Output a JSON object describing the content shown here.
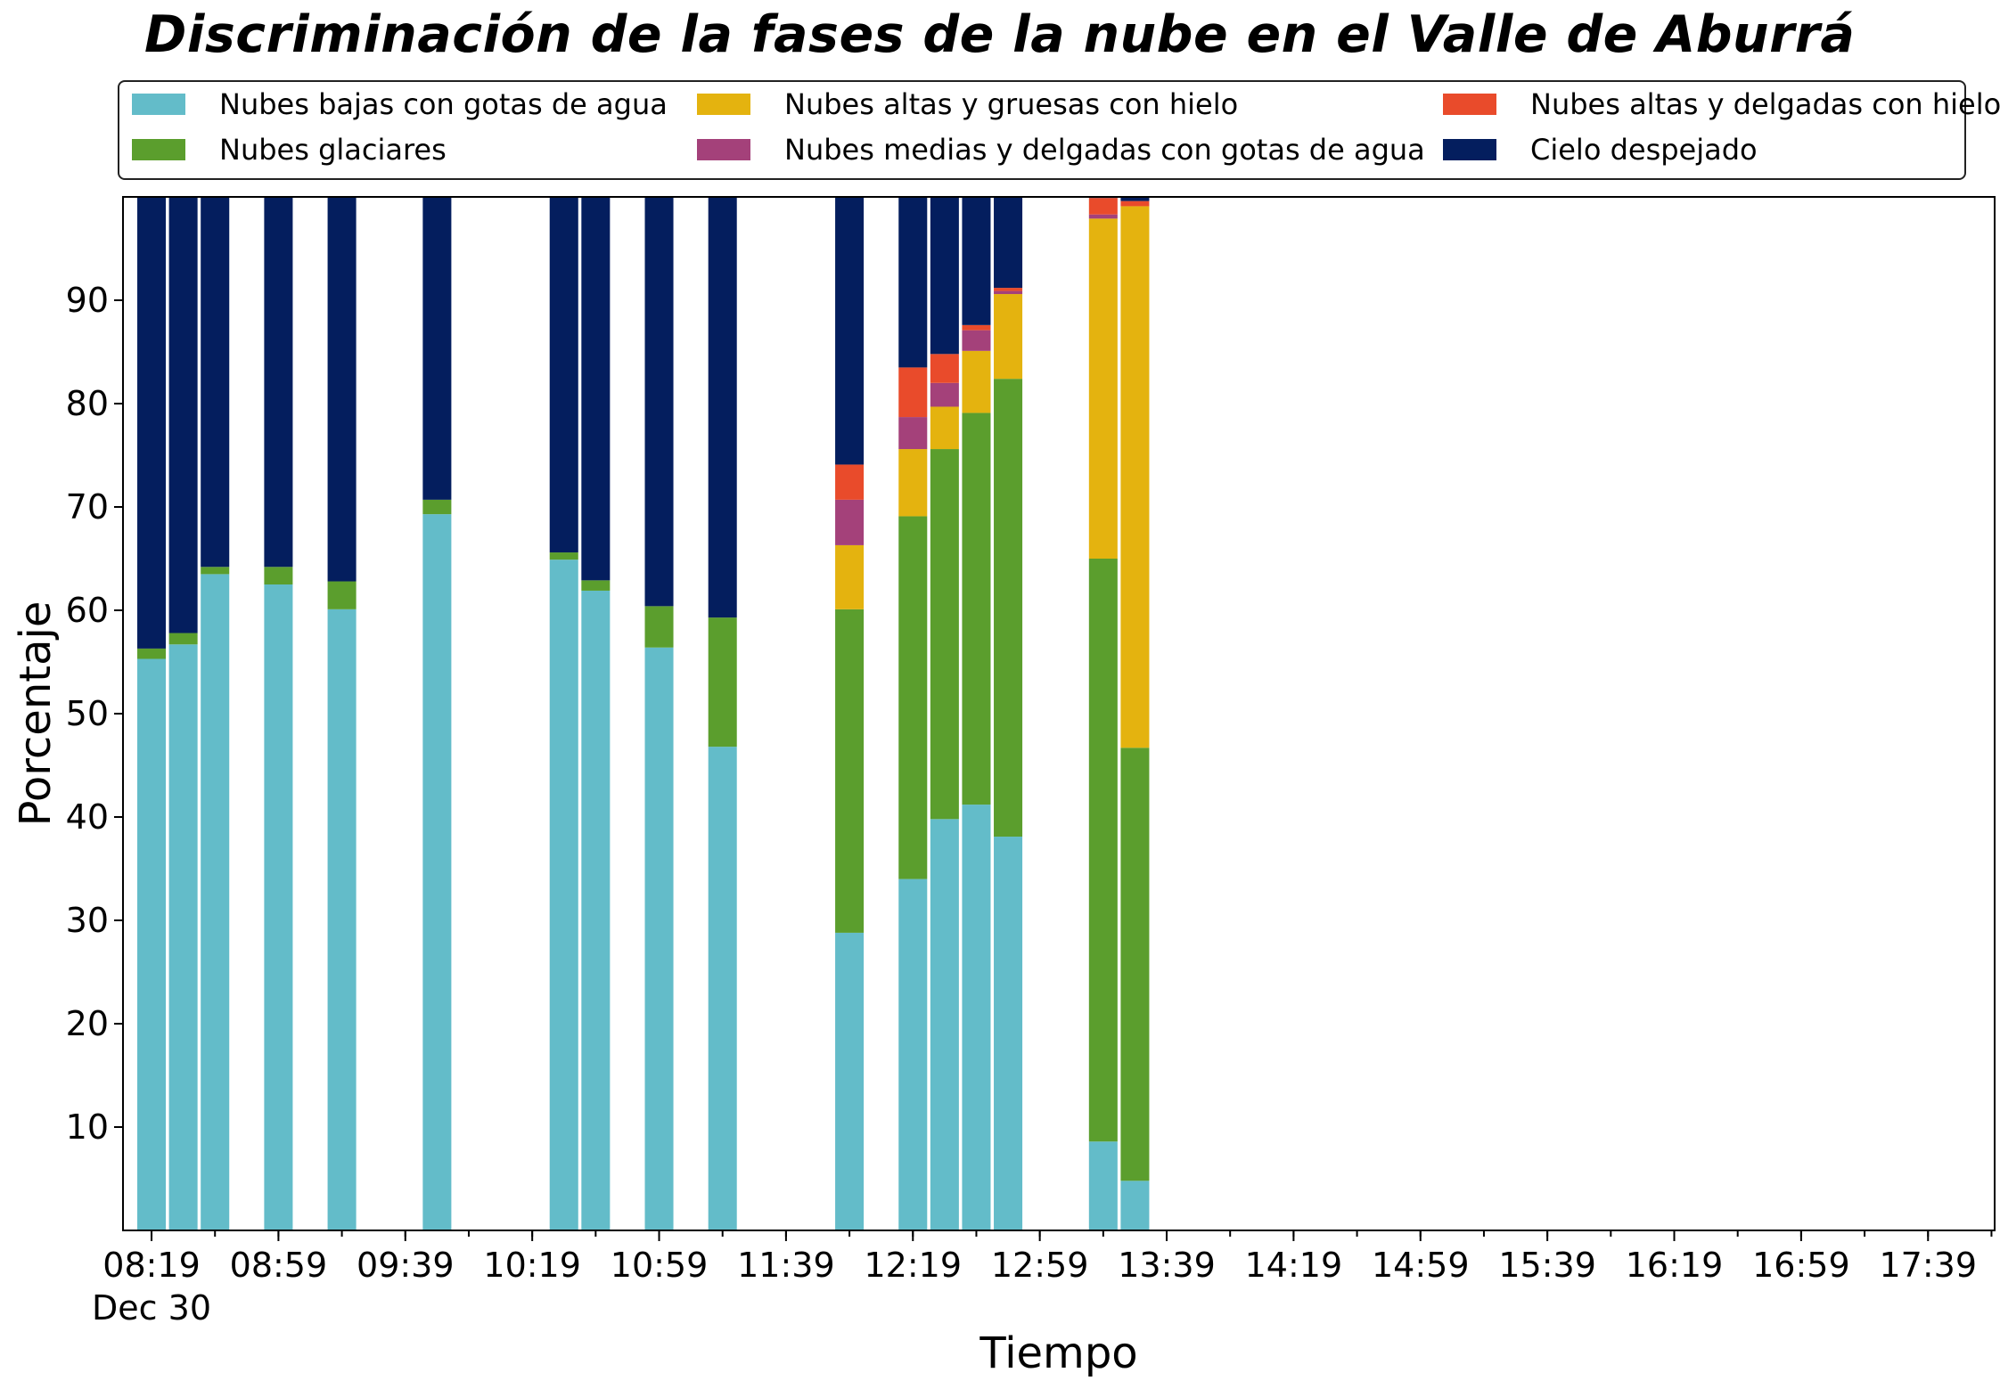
{
  "chart_data": {
    "type": "bar",
    "stacked": true,
    "title": "Discriminación de la fases de la nube en el Valle de Aburrá",
    "xlabel": "Tiempo",
    "ylabel": "Porcentaje",
    "date_label": "Dec 30",
    "x_range": [
      "08:10",
      "18:00"
    ],
    "ylim": [
      0,
      100
    ],
    "yticks": [
      10,
      20,
      30,
      40,
      50,
      60,
      70,
      80,
      90
    ],
    "xtick_labels": [
      "08:19",
      "08:59",
      "09:39",
      "10:19",
      "10:59",
      "11:39",
      "12:19",
      "12:59",
      "13:39",
      "14:19",
      "14:59",
      "15:39",
      "16:19",
      "16:59",
      "17:39"
    ],
    "legend_position": "top, above plot, 3 columns",
    "grid": false,
    "series": [
      {
        "name": "Nubes bajas con gotas de agua",
        "color": "#63bcc9"
      },
      {
        "name": "Nubes glaciares",
        "color": "#5b9e2d"
      },
      {
        "name": "Nubes altas y gruesas con hielo",
        "color": "#e4b30f"
      },
      {
        "name": "Nubes medias y delgadas con gotas de agua",
        "color": "#a4417a"
      },
      {
        "name": "Nubes altas y delgadas con hielo",
        "color": "#e94b2b"
      },
      {
        "name": "Cielo despejado",
        "color": "#041e5e"
      }
    ],
    "bars": [
      {
        "time": "08:19",
        "values": [
          55.3,
          1.0,
          0,
          0,
          0,
          43.7
        ]
      },
      {
        "time": "08:29",
        "values": [
          56.7,
          1.1,
          0,
          0,
          0,
          42.2
        ]
      },
      {
        "time": "08:39",
        "values": [
          63.5,
          0.7,
          0,
          0,
          0,
          35.8
        ]
      },
      {
        "time": "08:59",
        "values": [
          62.5,
          1.7,
          0,
          0,
          0,
          35.8
        ]
      },
      {
        "time": "09:19",
        "values": [
          60.1,
          2.7,
          0,
          0,
          0,
          37.2
        ]
      },
      {
        "time": "09:49",
        "values": [
          69.3,
          1.4,
          0,
          0,
          0,
          29.3
        ]
      },
      {
        "time": "10:29",
        "values": [
          64.9,
          0.7,
          0,
          0,
          0,
          34.4
        ]
      },
      {
        "time": "10:39",
        "values": [
          61.9,
          1.0,
          0,
          0,
          0,
          37.1
        ]
      },
      {
        "time": "10:59",
        "values": [
          56.4,
          4.0,
          0,
          0,
          0,
          39.6
        ]
      },
      {
        "time": "11:19",
        "values": [
          46.8,
          12.5,
          0,
          0,
          0,
          40.7
        ]
      },
      {
        "time": "11:59",
        "values": [
          28.8,
          31.3,
          6.2,
          4.4,
          3.4,
          25.9
        ]
      },
      {
        "time": "12:19",
        "values": [
          34.0,
          35.1,
          6.5,
          3.1,
          4.8,
          16.5
        ]
      },
      {
        "time": "12:29",
        "values": [
          39.8,
          35.8,
          4.1,
          2.3,
          2.8,
          15.2
        ]
      },
      {
        "time": "12:39",
        "values": [
          41.2,
          37.9,
          6.0,
          2.0,
          0.5,
          12.4
        ]
      },
      {
        "time": "12:49",
        "values": [
          38.1,
          44.3,
          8.2,
          0.3,
          0.3,
          8.8
        ]
      },
      {
        "time": "13:19",
        "values": [
          8.6,
          56.4,
          32.9,
          0.4,
          1.6,
          0.1
        ]
      },
      {
        "time": "13:29",
        "values": [
          4.8,
          41.9,
          52.4,
          0,
          0.5,
          0.4
        ]
      }
    ]
  }
}
